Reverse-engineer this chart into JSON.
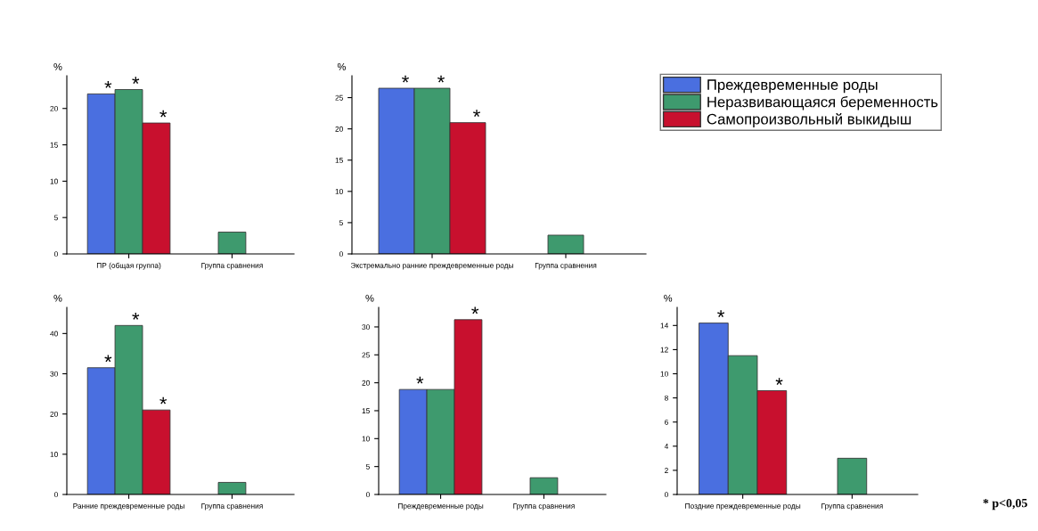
{
  "chart_data": [
    {
      "type": "bar",
      "ylabel": "%",
      "categories": [
        "ПР (общая группа)",
        "Группа сравнения"
      ],
      "ylim": [
        0,
        24.5
      ],
      "yticks": [
        0,
        5,
        10,
        15,
        20
      ],
      "legend": "right",
      "series": [
        {
          "name": "Преждевременные роды",
          "color": "#4a6fe0",
          "values": [
            22,
            null
          ],
          "value_labels": [
            "*",
            null
          ]
        },
        {
          "name": "Неразвивающаяся беременность",
          "color": "#3e9a6e",
          "values": [
            22.6,
            3
          ],
          "value_labels": [
            "*",
            null
          ]
        },
        {
          "name": "Самопроизвольный выкидыш",
          "color": "#c8102e",
          "values": [
            18,
            null
          ],
          "value_labels": [
            "*",
            null
          ]
        }
      ]
    },
    {
      "type": "bar",
      "ylabel": "%",
      "categories": [
        "Экстремально ранние преждевременные роды",
        "Группа сравнения"
      ],
      "ylim": [
        0,
        28.5
      ],
      "yticks": [
        0,
        5,
        10,
        15,
        20,
        25
      ],
      "series": [
        {
          "color": "#4a6fe0",
          "values": [
            26.5,
            null
          ],
          "value_labels": [
            "*",
            null
          ]
        },
        {
          "color": "#3e9a6e",
          "values": [
            26.5,
            3
          ],
          "value_labels": [
            "*",
            null
          ]
        },
        {
          "color": "#c8102e",
          "values": [
            21,
            null
          ],
          "value_labels": [
            "*",
            null
          ]
        }
      ]
    },
    {
      "type": "bar",
      "ylabel": "%",
      "categories": [
        "Ранние преждевременные роды",
        "Группа сравнения"
      ],
      "ylim": [
        0,
        46.5
      ],
      "yticks": [
        0,
        10,
        20,
        30,
        40
      ],
      "series": [
        {
          "color": "#4a6fe0",
          "values": [
            31.5,
            null
          ],
          "value_labels": [
            "*",
            null
          ]
        },
        {
          "color": "#3e9a6e",
          "values": [
            42,
            3
          ],
          "value_labels": [
            "*",
            null
          ]
        },
        {
          "color": "#c8102e",
          "values": [
            21,
            null
          ],
          "value_labels": [
            "*",
            null
          ]
        }
      ]
    },
    {
      "type": "bar",
      "ylabel": "%",
      "categories": [
        "Преждевременные роды",
        "Группа сравнения"
      ],
      "ylim": [
        0,
        33.5
      ],
      "yticks": [
        0,
        5,
        10,
        15,
        20,
        25,
        30
      ],
      "series": [
        {
          "color": "#4a6fe0",
          "values": [
            18.8,
            null
          ],
          "value_labels": [
            "*",
            null
          ]
        },
        {
          "color": "#3e9a6e",
          "values": [
            18.8,
            3
          ]
        },
        {
          "color": "#c8102e",
          "values": [
            31.3,
            null
          ],
          "value_labels": [
            "*",
            null
          ]
        }
      ]
    },
    {
      "type": "bar",
      "ylabel": "%",
      "categories": [
        "Поздние преждевременные роды",
        "Группа сравнения"
      ],
      "ylim": [
        0,
        15.5
      ],
      "yticks": [
        0,
        2,
        4,
        6,
        8,
        10,
        12,
        14
      ],
      "series": [
        {
          "color": "#4a6fe0",
          "values": [
            14.2,
            null
          ],
          "value_labels": [
            "*",
            null
          ]
        },
        {
          "color": "#3e9a6e",
          "values": [
            11.5,
            3
          ]
        },
        {
          "color": "#c8102e",
          "values": [
            8.6,
            null
          ],
          "value_labels": [
            "*",
            null
          ]
        }
      ],
      "annotations": [
        "* p<0,05"
      ]
    }
  ]
}
